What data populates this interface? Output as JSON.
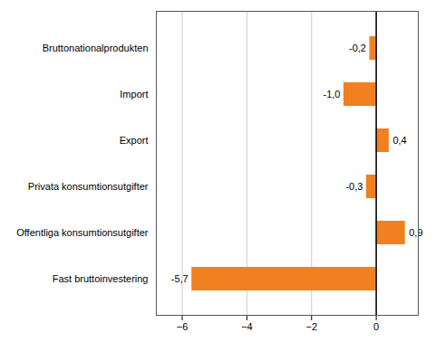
{
  "chart_data": {
    "type": "bar",
    "orientation": "horizontal",
    "categories": [
      "Fast bruttoinvestering",
      "Offentliga konsumtionsutgifter",
      "Privata konsumtionsutgifter",
      "Export",
      "Import",
      "Bruttonationalprodukten"
    ],
    "values": [
      -5.7,
      0.9,
      -0.3,
      0.4,
      -1.0,
      -0.2
    ],
    "value_labels": [
      "-5,7",
      "0,9",
      "-0,3",
      "0,4",
      "-1,0",
      "-0,2"
    ],
    "data_labels": true,
    "color": "#F08020",
    "xlim": [
      -6.8,
      1.3
    ],
    "xticks": [
      -6,
      -4,
      -2,
      0
    ],
    "grid": true
  }
}
